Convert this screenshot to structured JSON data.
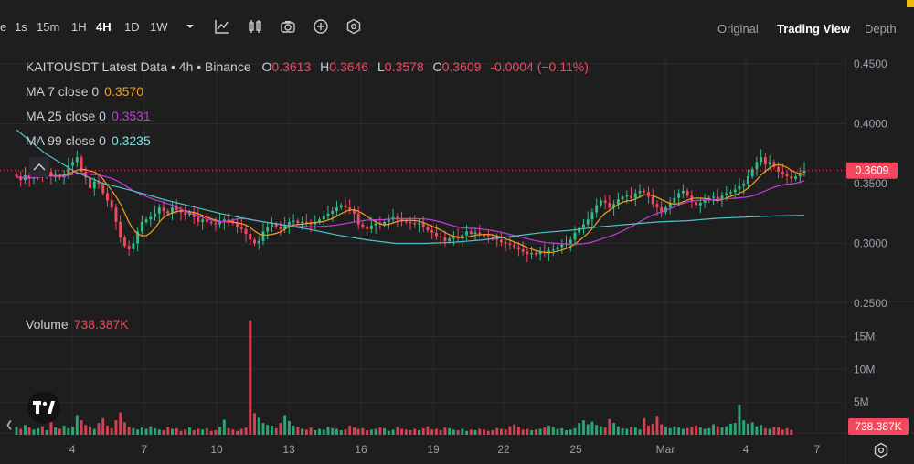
{
  "toolbar": {
    "partial_first": "e",
    "intervals": [
      "1s",
      "15m",
      "1H",
      "4H",
      "1D",
      "1W"
    ],
    "active_interval": "4H",
    "views": [
      "Original",
      "Trading View",
      "Depth"
    ],
    "active_view": "Trading View",
    "icons": [
      "dropdown-caret-icon",
      "indicators-icon",
      "candle-type-icon",
      "camera-icon",
      "add-icon",
      "settings-hex-icon"
    ]
  },
  "legend": {
    "title": "KAITOUSDT Latest Data • 4h • Binance",
    "o_label": "O",
    "o": "0.3613",
    "h_label": "H",
    "h": "0.3646",
    "l_label": "L",
    "l": "0.3578",
    "c_label": "C",
    "c": "0.3609",
    "change": "-0.0004 (−0.11%)",
    "ma7_label": "MA 7 close 0",
    "ma7": "0.3570",
    "ma25_label": "MA 25 close 0",
    "ma25": "0.3531",
    "ma99_label": "MA 99 close 0",
    "ma99": "0.3235",
    "volume_label": "Volume",
    "volume": "738.387K"
  },
  "colors": {
    "up": "#2ebd85",
    "down": "#f6465d",
    "ma7": "#f0a020",
    "ma25": "#c63cdb",
    "ma99": "#4fc3c5",
    "bg": "#1e1e1f",
    "grid": "#2b2b2e",
    "text": "#c9ccd3"
  },
  "chart_data": {
    "type": "candlestick",
    "price_axis": {
      "ticks": [
        "0.4500",
        "0.4000",
        "0.3500",
        "0.3000",
        "0.2500"
      ],
      "range": [
        0.25,
        0.45
      ]
    },
    "volume_axis": {
      "ticks": [
        "15M",
        "10M",
        "5M"
      ],
      "range": [
        0,
        18
      ]
    },
    "x_ticks": [
      "4",
      "7",
      "10",
      "13",
      "16",
      "19",
      "22",
      "25",
      "Mar",
      "4",
      "7"
    ],
    "last_price": "0.3609",
    "last_volume": "738.387K",
    "ma99": [
      0.344,
      0.337,
      0.331,
      0.325,
      0.32,
      0.316,
      0.312,
      0.307,
      0.303,
      0.3,
      0.3,
      0.301,
      0.303,
      0.306,
      0.309,
      0.311,
      0.314,
      0.316,
      0.318,
      0.319,
      0.321,
      0.322,
      0.323,
      0.3235
    ],
    "ma99_start": [
      0.395,
      0.375,
      0.36,
      0.35
    ],
    "closes": [
      0.356,
      0.353,
      0.357,
      0.354,
      0.355,
      0.358,
      0.357,
      0.36,
      0.356,
      0.356,
      0.355,
      0.357,
      0.365,
      0.368,
      0.372,
      0.36,
      0.355,
      0.346,
      0.352,
      0.35,
      0.342,
      0.336,
      0.33,
      0.318,
      0.305,
      0.298,
      0.295,
      0.3,
      0.31,
      0.318,
      0.32,
      0.322,
      0.325,
      0.33,
      0.327,
      0.325,
      0.33,
      0.328,
      0.326,
      0.324,
      0.326,
      0.322,
      0.318,
      0.32,
      0.318,
      0.317,
      0.316,
      0.318,
      0.32,
      0.319,
      0.317,
      0.314,
      0.312,
      0.308,
      0.303,
      0.3,
      0.302,
      0.31,
      0.314,
      0.316,
      0.314,
      0.312,
      0.315,
      0.318,
      0.319,
      0.317,
      0.318,
      0.317,
      0.316,
      0.318,
      0.32,
      0.323,
      0.325,
      0.327,
      0.33,
      0.332,
      0.33,
      0.328,
      0.325,
      0.316,
      0.314,
      0.312,
      0.315,
      0.317,
      0.316,
      0.318,
      0.32,
      0.322,
      0.321,
      0.319,
      0.318,
      0.317,
      0.316,
      0.317,
      0.314,
      0.311,
      0.309,
      0.306,
      0.305,
      0.302,
      0.304,
      0.306,
      0.304,
      0.307,
      0.31,
      0.308,
      0.309,
      0.308,
      0.306,
      0.305,
      0.304,
      0.303,
      0.301,
      0.3,
      0.299,
      0.297,
      0.295,
      0.293,
      0.291,
      0.292,
      0.291,
      0.293,
      0.292,
      0.294,
      0.295,
      0.297,
      0.299,
      0.3,
      0.303,
      0.309,
      0.313,
      0.316,
      0.32,
      0.326,
      0.332,
      0.336,
      0.334,
      0.33,
      0.333,
      0.337,
      0.339,
      0.34,
      0.338,
      0.342,
      0.344,
      0.343,
      0.339,
      0.333,
      0.33,
      0.326,
      0.33,
      0.334,
      0.338,
      0.342,
      0.344,
      0.34,
      0.335,
      0.332,
      0.334,
      0.336,
      0.338,
      0.339,
      0.337,
      0.34,
      0.342,
      0.343,
      0.345,
      0.348,
      0.35,
      0.356,
      0.362,
      0.368,
      0.372,
      0.366,
      0.368,
      0.364,
      0.36,
      0.358,
      0.356,
      0.354,
      0.356,
      0.359,
      0.361
    ],
    "volumes": [
      1.2,
      0.9,
      1.5,
      1.1,
      0.8,
      1.0,
      1.3,
      0.7,
      2.0,
      1.1,
      0.9,
      1.4,
      1.0,
      1.2,
      3.0,
      2.2,
      1.5,
      1.2,
      0.9,
      1.8,
      2.5,
      1.4,
      1.0,
      2.2,
      3.4,
      1.9,
      1.2,
      1.0,
      0.8,
      1.1,
      0.9,
      1.3,
      1.0,
      0.8,
      0.7,
      1.2,
      0.9,
      1.0,
      0.6,
      0.8,
      1.1,
      0.7,
      0.9,
      0.8,
      1.0,
      0.6,
      0.7,
      1.2,
      2.3,
      1.0,
      0.8,
      0.6,
      0.9,
      1.1,
      17.5,
      3.3,
      2.6,
      1.8,
      1.5,
      1.4,
      1.0,
      1.8,
      3.0,
      2.1,
      1.4,
      1.2,
      0.9,
      0.8,
      1.1,
      0.7,
      0.9,
      0.8,
      1.2,
      1.0,
      0.9,
      0.7,
      0.8,
      1.4,
      1.1,
      0.9,
      1.0,
      0.7,
      0.8,
      0.9,
      1.1,
      1.0,
      0.6,
      0.8,
      1.2,
      0.9,
      0.8,
      0.7,
      0.9,
      0.7,
      1.0,
      1.3,
      0.8,
      0.9,
      0.7,
      1.1,
      1.0,
      0.8,
      0.7,
      0.9,
      0.6,
      0.8,
      0.7,
      0.9,
      0.8,
      0.6,
      0.7,
      1.0,
      0.9,
      0.8,
      1.3,
      1.6,
      1.2,
      0.8,
      0.9,
      0.7,
      0.8,
      0.9,
      1.1,
      1.4,
      1.2,
      0.9,
      1.0,
      0.7,
      0.8,
      1.0,
      1.8,
      2.2,
      1.6,
      2.0,
      1.5,
      1.3,
      1.1,
      2.4,
      1.8,
      1.3,
      1.0,
      0.9,
      1.2,
      1.1,
      0.8,
      2.5,
      1.4,
      1.7,
      2.9,
      1.6,
      1.2,
      1.0,
      1.3,
      1.1,
      0.9,
      1.0,
      1.2,
      1.4,
      1.1,
      0.9,
      1.0,
      1.6,
      1.3,
      1.1,
      1.3,
      1.7,
      1.8,
      4.6,
      2.2,
      1.7,
      1.9,
      1.3,
      1.5,
      1.0,
      0.9,
      1.2,
      1.1,
      0.8,
      1.0,
      0.74
    ]
  }
}
